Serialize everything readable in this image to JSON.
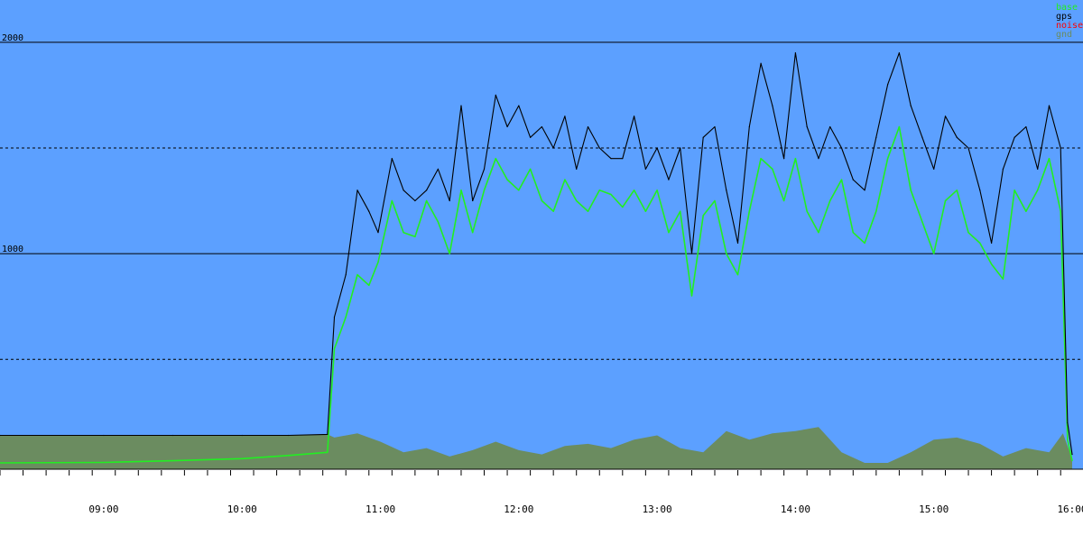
{
  "chart_data": {
    "type": "area",
    "title": "",
    "xlabel": "",
    "ylabel": "",
    "ylim": [
      -20,
      2200
    ],
    "xlim": [
      "08:15",
      "16:00"
    ],
    "y_ticks_labeled": [
      1000,
      2000
    ],
    "y_gridlines_solid": [
      1000,
      2000
    ],
    "y_gridlines_dashed": [
      500,
      1500
    ],
    "grid": true,
    "legend_position": "top-right",
    "x_ticks_major": [
      "09:00",
      "10:00",
      "11:00",
      "12:00",
      "13:00",
      "14:00",
      "15:00",
      "16:00"
    ],
    "colors": {
      "plot_background": "#5ca0ff",
      "page_background": "#ffffff",
      "gridline": "#000000",
      "gps": "#000000",
      "base": "#22ee22",
      "noise": "#ff0000",
      "gnd": "#6b8c60",
      "axis": "#000000"
    },
    "series": [
      {
        "name": "base",
        "color": "#22ee22",
        "x": [
          "08:15",
          "09:00",
          "09:30",
          "10:00",
          "10:20",
          "10:37",
          "10:40",
          "10:45",
          "10:50",
          "10:55",
          "10:59",
          "11:05",
          "11:10",
          "11:15",
          "11:20",
          "11:25",
          "11:30",
          "11:35",
          "11:40",
          "11:45",
          "11:50",
          "11:55",
          "12:00",
          "12:05",
          "12:10",
          "12:15",
          "12:20",
          "12:25",
          "12:30",
          "12:35",
          "12:40",
          "12:45",
          "12:50",
          "12:55",
          "13:00",
          "13:05",
          "13:10",
          "13:15",
          "13:20",
          "13:25",
          "13:30",
          "13:35",
          "13:40",
          "13:45",
          "13:50",
          "13:55",
          "14:00",
          "14:05",
          "14:10",
          "14:15",
          "14:20",
          "14:25",
          "14:30",
          "14:35",
          "14:40",
          "14:45",
          "14:50",
          "14:55",
          "15:00",
          "15:05",
          "15:10",
          "15:15",
          "15:20",
          "15:25",
          "15:30",
          "15:35",
          "15:40",
          "15:45",
          "15:50",
          "15:55",
          "15:58",
          "16:00"
        ],
        "values": [
          10,
          12,
          20,
          30,
          45,
          60,
          550,
          700,
          900,
          850,
          960,
          1250,
          1100,
          1080,
          1250,
          1150,
          1000,
          1300,
          1100,
          1300,
          1450,
          1350,
          1300,
          1400,
          1250,
          1200,
          1350,
          1250,
          1200,
          1300,
          1280,
          1220,
          1300,
          1200,
          1300,
          1100,
          1200,
          800,
          1180,
          1250,
          1000,
          900,
          1200,
          1450,
          1400,
          1250,
          1450,
          1200,
          1100,
          1250,
          1350,
          1100,
          1050,
          1200,
          1450,
          1600,
          1300,
          1150,
          1000,
          1250,
          1300,
          1100,
          1050,
          950,
          880,
          1300,
          1200,
          1300,
          1450,
          1200,
          120,
          20
        ]
      },
      {
        "name": "gps",
        "color": "#000000",
        "x": [
          "08:15",
          "09:00",
          "09:30",
          "10:00",
          "10:20",
          "10:37",
          "10:40",
          "10:45",
          "10:50",
          "10:55",
          "10:59",
          "11:05",
          "11:10",
          "11:15",
          "11:20",
          "11:25",
          "11:30",
          "11:35",
          "11:40",
          "11:45",
          "11:50",
          "11:55",
          "12:00",
          "12:05",
          "12:10",
          "12:15",
          "12:20",
          "12:25",
          "12:30",
          "12:35",
          "12:40",
          "12:45",
          "12:50",
          "12:55",
          "13:00",
          "13:05",
          "13:10",
          "13:15",
          "13:20",
          "13:25",
          "13:30",
          "13:35",
          "13:40",
          "13:45",
          "13:50",
          "13:55",
          "14:00",
          "14:05",
          "14:10",
          "14:15",
          "14:20",
          "14:25",
          "14:30",
          "14:35",
          "14:40",
          "14:45",
          "14:50",
          "14:55",
          "15:00",
          "15:05",
          "15:10",
          "15:15",
          "15:20",
          "15:25",
          "15:30",
          "15:35",
          "15:40",
          "15:45",
          "15:50",
          "15:55",
          "15:58",
          "16:00"
        ],
        "values": [
          140,
          140,
          140,
          140,
          140,
          145,
          700,
          900,
          1300,
          1200,
          1100,
          1450,
          1300,
          1250,
          1300,
          1400,
          1250,
          1700,
          1250,
          1400,
          1750,
          1600,
          1700,
          1550,
          1600,
          1500,
          1650,
          1400,
          1600,
          1500,
          1450,
          1450,
          1650,
          1400,
          1500,
          1350,
          1500,
          1000,
          1550,
          1600,
          1300,
          1050,
          1600,
          1900,
          1700,
          1450,
          1950,
          1600,
          1450,
          1600,
          1500,
          1350,
          1300,
          1550,
          1800,
          1950,
          1700,
          1550,
          1400,
          1650,
          1550,
          1500,
          1300,
          1050,
          1400,
          1550,
          1600,
          1400,
          1700,
          1500,
          200,
          50
        ]
      },
      {
        "name": "noise",
        "color": "#ff0000",
        "x": [],
        "values": []
      },
      {
        "name": "gnd",
        "color": "#6b8c60",
        "x": [
          "08:15",
          "09:00",
          "09:30",
          "10:00",
          "10:20",
          "10:37",
          "10:40",
          "10:50",
          "11:00",
          "11:10",
          "11:20",
          "11:30",
          "11:40",
          "11:50",
          "12:00",
          "12:10",
          "12:20",
          "12:30",
          "12:40",
          "12:50",
          "13:00",
          "13:10",
          "13:20",
          "13:30",
          "13:40",
          "13:50",
          "14:00",
          "14:10",
          "14:20",
          "14:30",
          "14:40",
          "14:50",
          "15:00",
          "15:10",
          "15:20",
          "15:30",
          "15:40",
          "15:50",
          "15:56",
          "16:00"
        ],
        "values": [
          140,
          140,
          140,
          140,
          140,
          145,
          130,
          150,
          110,
          60,
          80,
          40,
          70,
          110,
          70,
          50,
          90,
          100,
          80,
          120,
          140,
          80,
          60,
          160,
          120,
          150,
          160,
          180,
          60,
          10,
          10,
          60,
          120,
          130,
          100,
          40,
          80,
          60,
          150,
          30
        ]
      }
    ]
  }
}
